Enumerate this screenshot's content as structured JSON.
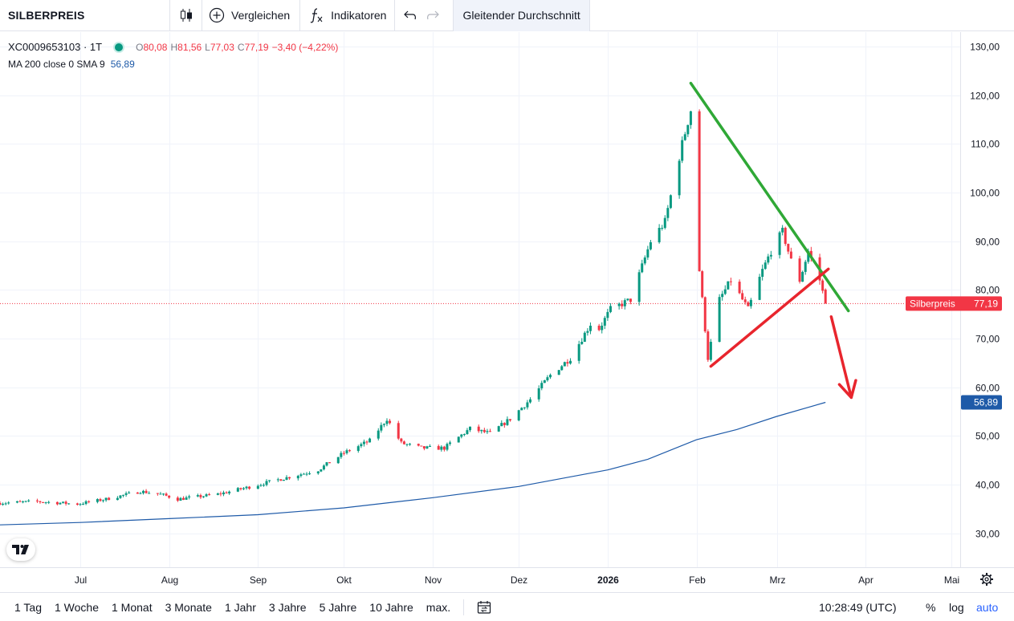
{
  "toolbar": {
    "symbol": "SILBERPREIS",
    "compare_label": "Vergleichen",
    "indicators_label": "Indikatoren",
    "indicator_tag": "Gleitender Durchschnitt"
  },
  "legend": {
    "symbol": "XC0009653103 · 1T",
    "open_key": "O",
    "open": "80,08",
    "high_key": "H",
    "high": "81,56",
    "low_key": "L",
    "low": "77,03",
    "close_key": "C",
    "close": "77,19",
    "change": "−3,40 (−4,22%)",
    "ma_label": "MA 200 close 0 SMA 9",
    "ma_value": "56,89"
  },
  "price_label": {
    "name": "Silberpreis",
    "value": "77,19"
  },
  "ma_label_value": "56,89",
  "bottom_bar": {
    "ranges": [
      "1 Tag",
      "1 Woche",
      "1 Monat",
      "3 Monate",
      "1 Jahr",
      "3 Jahre",
      "5 Jahre",
      "10 Jahre",
      "max."
    ],
    "clock": "10:28:49 (UTC)",
    "percent": "%",
    "log": "log",
    "auto": "auto"
  },
  "colors": {
    "up": "#089981",
    "down": "#f23645",
    "ma": "#1e5aa8",
    "trend_upper": "#2fa836",
    "trend_lower": "#e8252d",
    "arrow": "#e8252d"
  },
  "chart_data": {
    "type": "candlestick",
    "title": "SILBERPREIS",
    "ylim": [
      23,
      133
    ],
    "y_ticks": [
      "30,00",
      "40,00",
      "50,00",
      "60,00",
      "70,00",
      "80,00",
      "90,00",
      "100,00",
      "110,00",
      "120,00",
      "130,00"
    ],
    "y_tick_values": [
      30,
      40,
      50,
      60,
      70,
      80,
      90,
      100,
      110,
      120,
      130
    ],
    "x_tick_labels": [
      "Jul",
      "Aug",
      "Sep",
      "Okt",
      "Nov",
      "Dez",
      "2026",
      "Feb",
      "Mrz",
      "Apr",
      "Mai"
    ],
    "x_tick_dates": [
      "2025-07-01",
      "2025-08-01",
      "2025-09-01",
      "2025-10-01",
      "2025-11-01",
      "2025-12-01",
      "2026-01-01",
      "2026-02-01",
      "2026-03-01",
      "2026-04-01",
      "2026-05-01"
    ],
    "x_range": [
      "2025-06-03",
      "2026-05-04"
    ],
    "grid": true,
    "last_close": 77.19,
    "price_series": {
      "name": "Silberpreis",
      "close_path": [
        [
          "2025-06-03",
          36.2
        ],
        [
          "2025-06-16",
          36.5
        ],
        [
          "2025-06-30",
          36.0
        ],
        [
          "2025-07-10",
          37.0
        ],
        [
          "2025-07-22",
          38.6
        ],
        [
          "2025-07-29",
          38.0
        ],
        [
          "2025-08-04",
          37.0
        ],
        [
          "2025-08-18",
          38.0
        ],
        [
          "2025-08-29",
          39.5
        ],
        [
          "2025-09-08",
          41.0
        ],
        [
          "2025-09-22",
          43.0
        ],
        [
          "2025-10-01",
          46.5
        ],
        [
          "2025-10-10",
          49.0
        ],
        [
          "2025-10-16",
          53.5
        ],
        [
          "2025-10-21",
          48.5
        ],
        [
          "2025-10-28",
          47.5
        ],
        [
          "2025-11-05",
          47.5
        ],
        [
          "2025-11-14",
          51.5
        ],
        [
          "2025-11-21",
          50.5
        ],
        [
          "2025-11-28",
          53.5
        ],
        [
          "2025-12-05",
          57.5
        ],
        [
          "2025-12-12",
          62.5
        ],
        [
          "2025-12-19",
          66.0
        ],
        [
          "2025-12-26",
          73.0
        ],
        [
          "2025-12-29",
          72.0
        ],
        [
          "2026-01-02",
          76.0
        ],
        [
          "2026-01-09",
          78.0
        ],
        [
          "2026-01-16",
          90.0
        ],
        [
          "2026-01-21",
          94.0
        ],
        [
          "2026-01-27",
          110.0
        ],
        [
          "2026-01-30",
          117.0
        ],
        [
          "2026-02-02",
          84.0
        ],
        [
          "2026-02-05",
          66.0
        ],
        [
          "2026-02-09",
          78.0
        ],
        [
          "2026-02-13",
          82.0
        ],
        [
          "2026-02-19",
          76.0
        ],
        [
          "2026-02-24",
          84.0
        ],
        [
          "2026-02-27",
          88.0
        ],
        [
          "2026-03-03",
          92.0
        ],
        [
          "2026-03-06",
          86.0
        ],
        [
          "2026-03-09",
          82.0
        ],
        [
          "2026-03-12",
          88.0
        ],
        [
          "2026-03-16",
          82.0
        ],
        [
          "2026-03-18",
          77.2
        ]
      ]
    },
    "ma_series": {
      "name": "MA 200 close 0 SMA 9",
      "points": [
        [
          "2025-06-03",
          31.7
        ],
        [
          "2025-07-01",
          32.2
        ],
        [
          "2025-08-01",
          33.0
        ],
        [
          "2025-09-01",
          33.8
        ],
        [
          "2025-10-01",
          35.2
        ],
        [
          "2025-11-01",
          37.3
        ],
        [
          "2025-12-01",
          39.6
        ],
        [
          "2026-01-01",
          43.0
        ],
        [
          "2026-01-15",
          45.2
        ],
        [
          "2026-02-01",
          49.2
        ],
        [
          "2026-02-15",
          51.3
        ],
        [
          "2026-03-01",
          54.0
        ],
        [
          "2026-03-18",
          56.89
        ]
      ]
    },
    "annotations": {
      "upper_trendline": [
        [
          "2026-01-30",
          122.5
        ],
        [
          "2026-03-26",
          75.7
        ]
      ],
      "lower_trendline": [
        [
          "2026-02-06",
          64.3
        ],
        [
          "2026-03-19",
          84.3
        ]
      ],
      "arrow": [
        [
          "2026-03-20",
          74.5
        ],
        [
          "2026-03-27",
          57.9
        ]
      ]
    }
  }
}
